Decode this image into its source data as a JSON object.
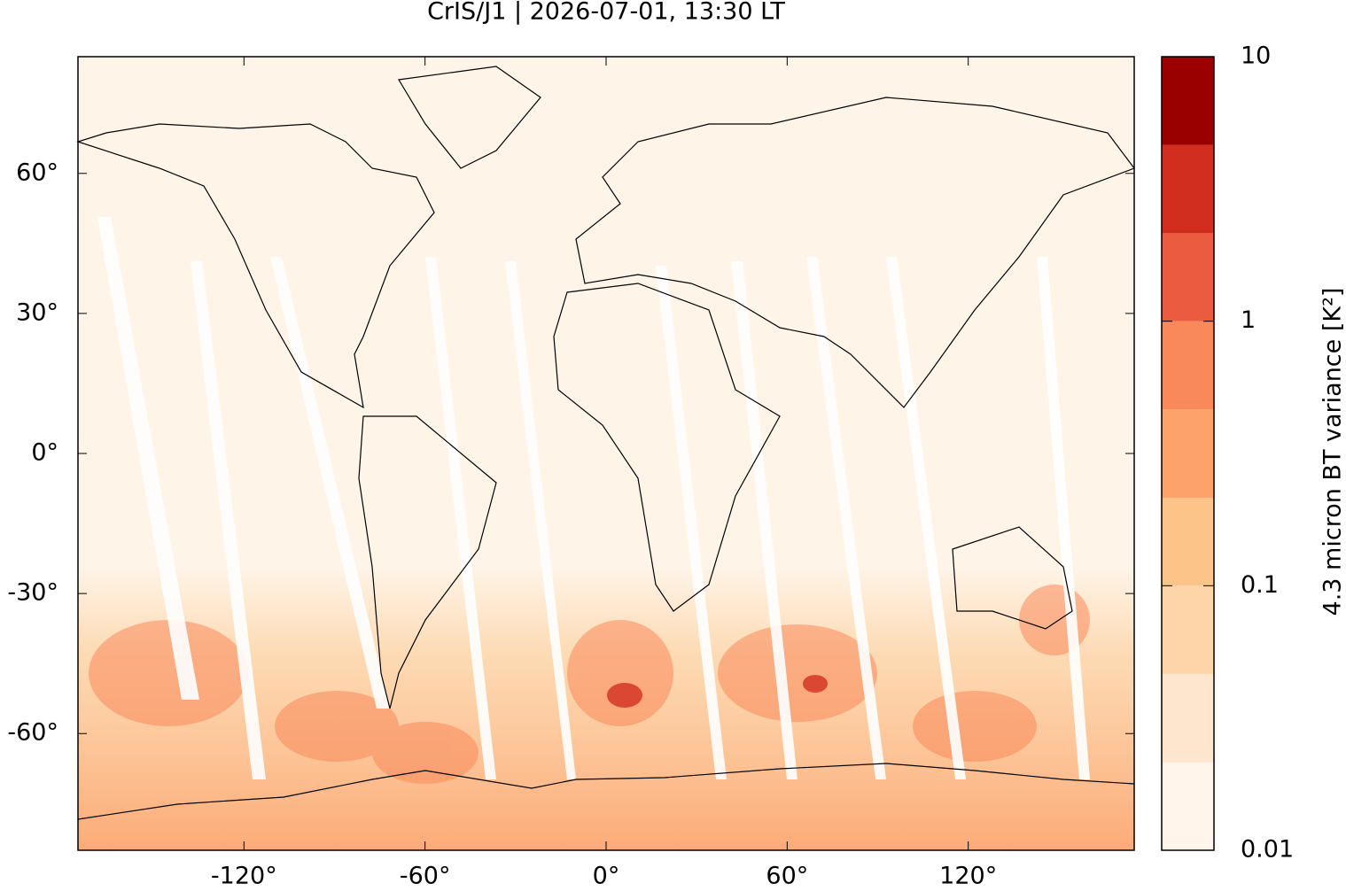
{
  "chart_data": {
    "type": "map",
    "title": "CrIS/J1 | 2026-07-01, 13:30 LT",
    "xlim": [
      -175,
      175
    ],
    "ylim": [
      -85,
      85
    ],
    "xticks": [
      {
        "value": -120,
        "label": "-120°"
      },
      {
        "value": -60,
        "label": "-60°"
      },
      {
        "value": 0,
        "label": "0°"
      },
      {
        "value": 60,
        "label": "60°"
      },
      {
        "value": 120,
        "label": "120°"
      }
    ],
    "yticks": [
      {
        "value": -60,
        "label": "-60°"
      },
      {
        "value": -30,
        "label": "-30°"
      },
      {
        "value": 0,
        "label": "0°"
      },
      {
        "value": 30,
        "label": "30°"
      },
      {
        "value": 60,
        "label": "60°"
      }
    ],
    "colorbar": {
      "label": "4.3 micron BT variance [K²]",
      "scale": "log",
      "lim": [
        0.01,
        10
      ],
      "ticks": [
        0.01,
        0.1,
        1,
        10
      ],
      "levels": [
        0.01,
        0.0215,
        0.0464,
        0.1,
        0.215,
        0.464,
        1,
        2.15,
        4.64,
        10
      ],
      "colors": [
        "#fff5eb",
        "#fee6ce",
        "#fdd5a8",
        "#fdc48a",
        "#fca36b",
        "#f9895a",
        "#ea5b3f",
        "#d22e1f",
        "#9b0000"
      ]
    }
  }
}
